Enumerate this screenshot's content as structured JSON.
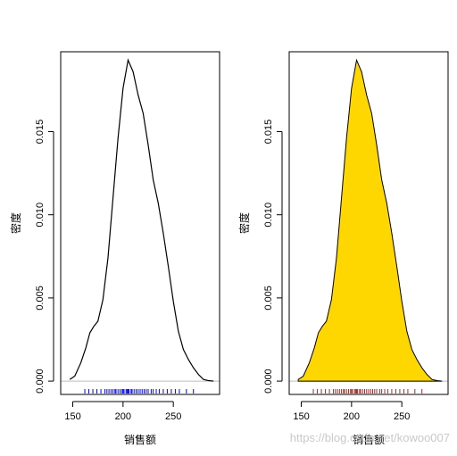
{
  "chart_data": [
    {
      "type": "area",
      "fill": "none",
      "line_color": "#000000",
      "rug_color": "#0000ff",
      "xlabel": "销售额",
      "ylabel": "密度",
      "xlim": [
        138,
        296
      ],
      "ylim": [
        -0.0008,
        0.0198
      ],
      "x_ticks": [
        150,
        200,
        250
      ],
      "x_tick_labels": [
        "150",
        "200",
        "250"
      ],
      "y_ticks": [
        0.0,
        0.005,
        0.01,
        0.015
      ],
      "y_tick_labels": [
        "0.000",
        "0.005",
        "0.010",
        "0.015"
      ],
      "density_x": [
        147,
        152,
        158,
        163,
        167,
        171,
        175,
        180,
        185,
        190,
        195,
        200,
        205,
        210,
        215,
        220,
        225,
        230,
        235,
        240,
        245,
        250,
        255,
        260,
        265,
        270,
        275,
        280,
        285,
        290
      ],
      "density_y": [
        0.0001,
        0.0003,
        0.0011,
        0.002,
        0.0029,
        0.0033,
        0.0036,
        0.0049,
        0.0074,
        0.011,
        0.0146,
        0.0176,
        0.0193,
        0.0186,
        0.0172,
        0.0161,
        0.0142,
        0.0121,
        0.0107,
        0.0089,
        0.0069,
        0.0048,
        0.003,
        0.0019,
        0.0013,
        0.0008,
        0.0004,
        0.0001,
        3e-05,
        0.0
      ],
      "rug": [
        162,
        166,
        170,
        174,
        178,
        182,
        184,
        186,
        188,
        190,
        192,
        193,
        195,
        197,
        199,
        200,
        201,
        203,
        204,
        205,
        206,
        208,
        209,
        211,
        213,
        215,
        217,
        219,
        221,
        223,
        225,
        228,
        230,
        233,
        236,
        240,
        244,
        248,
        252,
        256,
        263,
        270
      ]
    },
    {
      "type": "area",
      "fill": "#ffd700",
      "line_color": "#000000",
      "rug_color": "#a52a2a",
      "xlabel": "销售额",
      "ylabel": "密度",
      "xlim": [
        138,
        296
      ],
      "ylim": [
        -0.0008,
        0.0198
      ],
      "x_ticks": [
        150,
        200,
        250
      ],
      "x_tick_labels": [
        "150",
        "200",
        "250"
      ],
      "y_ticks": [
        0.0,
        0.005,
        0.01,
        0.015
      ],
      "y_tick_labels": [
        "0.000",
        "0.005",
        "0.010",
        "0.015"
      ],
      "density_x": [
        147,
        152,
        158,
        163,
        167,
        171,
        175,
        180,
        185,
        190,
        195,
        200,
        205,
        210,
        215,
        220,
        225,
        230,
        235,
        240,
        245,
        250,
        255,
        260,
        265,
        270,
        275,
        280,
        285,
        290
      ],
      "density_y": [
        0.0001,
        0.0003,
        0.0011,
        0.002,
        0.0029,
        0.0033,
        0.0036,
        0.0049,
        0.0074,
        0.011,
        0.0146,
        0.0176,
        0.0193,
        0.0186,
        0.0172,
        0.0161,
        0.0142,
        0.0121,
        0.0107,
        0.0089,
        0.0069,
        0.0048,
        0.003,
        0.0019,
        0.0013,
        0.0008,
        0.0004,
        0.0001,
        3e-05,
        0.0
      ],
      "rug": [
        162,
        166,
        170,
        174,
        178,
        182,
        184,
        186,
        188,
        190,
        192,
        193,
        195,
        197,
        199,
        200,
        201,
        203,
        204,
        205,
        206,
        208,
        209,
        211,
        213,
        215,
        217,
        219,
        221,
        223,
        225,
        228,
        230,
        233,
        236,
        240,
        244,
        248,
        252,
        256,
        263,
        270
      ]
    }
  ],
  "watermark": "https://blog.csdn.net/kowoo007"
}
